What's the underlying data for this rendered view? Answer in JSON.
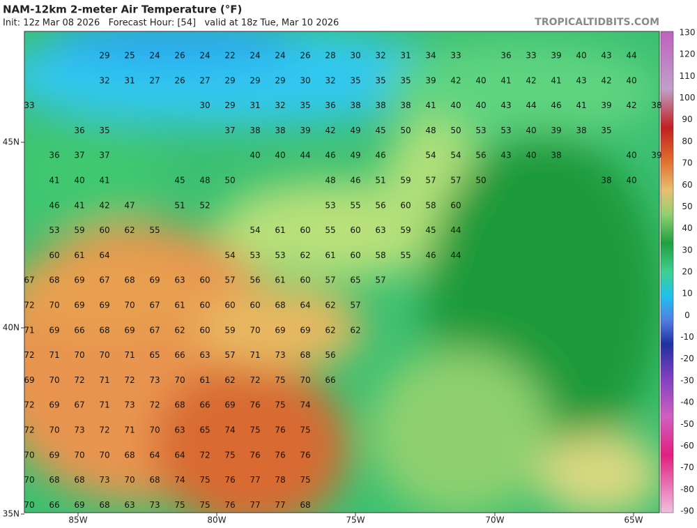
{
  "header": {
    "title": "NAM-12km 2-meter Air Temperature (°F)",
    "subtitle": "Init: 12z Mar 08 2026   Forecast Hour: [54]   valid at 18z Tue, Mar 10 2026",
    "site": "TROPICALTIDBITS.COM"
  },
  "colorbar": {
    "labels": [
      130,
      120,
      110,
      100,
      90,
      80,
      70,
      60,
      50,
      40,
      30,
      20,
      10,
      0,
      -10,
      -20,
      -30,
      -40,
      -50,
      -60,
      -70,
      -80,
      -90
    ]
  },
  "axes": {
    "lat_labels": [
      "45N",
      "40N",
      "35N"
    ],
    "lon_labels": [
      "85W",
      "80W",
      "75W",
      "70W",
      "65W"
    ]
  },
  "stations": {
    "rows": [
      [
        null,
        null,
        null,
        29,
        25,
        24,
        26,
        24,
        22,
        24,
        24,
        26,
        28,
        30,
        32,
        31,
        34,
        33,
        null,
        36,
        33,
        39,
        40,
        43,
        44
      ],
      [
        null,
        null,
        null,
        32,
        31,
        27,
        26,
        27,
        29,
        29,
        29,
        30,
        32,
        35,
        35,
        35,
        39,
        42,
        40,
        41,
        42,
        41,
        43,
        42,
        40
      ],
      [
        33,
        null,
        null,
        null,
        null,
        null,
        null,
        30,
        29,
        31,
        32,
        35,
        36,
        38,
        38,
        38,
        41,
        40,
        40,
        43,
        44,
        46,
        41,
        39,
        42,
        38
      ],
      [
        null,
        null,
        36,
        35,
        null,
        null,
        null,
        null,
        37,
        38,
        38,
        39,
        42,
        49,
        45,
        50,
        48,
        50,
        53,
        53,
        40,
        39,
        38,
        35
      ],
      [
        null,
        36,
        37,
        37,
        null,
        null,
        null,
        null,
        null,
        40,
        40,
        44,
        46,
        49,
        46,
        null,
        54,
        54,
        56,
        43,
        40,
        38,
        null,
        null,
        40,
        39
      ],
      [
        null,
        41,
        40,
        41,
        null,
        null,
        45,
        48,
        50,
        null,
        null,
        null,
        48,
        46,
        51,
        59,
        57,
        57,
        50,
        null,
        null,
        null,
        null,
        38,
        40
      ],
      [
        null,
        46,
        41,
        42,
        47,
        null,
        51,
        52,
        null,
        null,
        null,
        null,
        53,
        55,
        56,
        60,
        58,
        60
      ],
      [
        null,
        53,
        59,
        60,
        62,
        55,
        null,
        null,
        null,
        54,
        61,
        60,
        55,
        60,
        63,
        59,
        45,
        44
      ],
      [
        null,
        60,
        61,
        64,
        null,
        null,
        null,
        null,
        54,
        53,
        53,
        62,
        61,
        60,
        58,
        55,
        46,
        44
      ],
      [
        67,
        68,
        69,
        67,
        68,
        69,
        63,
        60,
        57,
        56,
        61,
        60,
        57,
        65,
        57
      ],
      [
        72,
        70,
        69,
        69,
        70,
        67,
        61,
        60,
        60,
        60,
        68,
        64,
        62,
        57
      ],
      [
        71,
        69,
        66,
        68,
        69,
        67,
        62,
        60,
        59,
        70,
        69,
        69,
        62,
        62
      ],
      [
        72,
        71,
        70,
        70,
        71,
        65,
        66,
        63,
        57,
        71,
        73,
        68,
        56
      ],
      [
        69,
        70,
        72,
        71,
        72,
        73,
        70,
        61,
        62,
        72,
        75,
        70,
        66
      ],
      [
        72,
        69,
        67,
        71,
        73,
        72,
        68,
        66,
        69,
        76,
        75,
        74
      ],
      [
        72,
        70,
        73,
        72,
        71,
        70,
        63,
        65,
        74,
        75,
        76,
        75
      ],
      [
        70,
        69,
        70,
        70,
        68,
        64,
        64,
        72,
        75,
        76,
        76,
        76
      ],
      [
        70,
        68,
        68,
        73,
        70,
        68,
        74,
        75,
        76,
        77,
        78,
        75
      ],
      [
        70,
        66,
        69,
        68,
        63,
        73,
        75,
        75,
        76,
        77,
        77,
        68
      ]
    ]
  }
}
